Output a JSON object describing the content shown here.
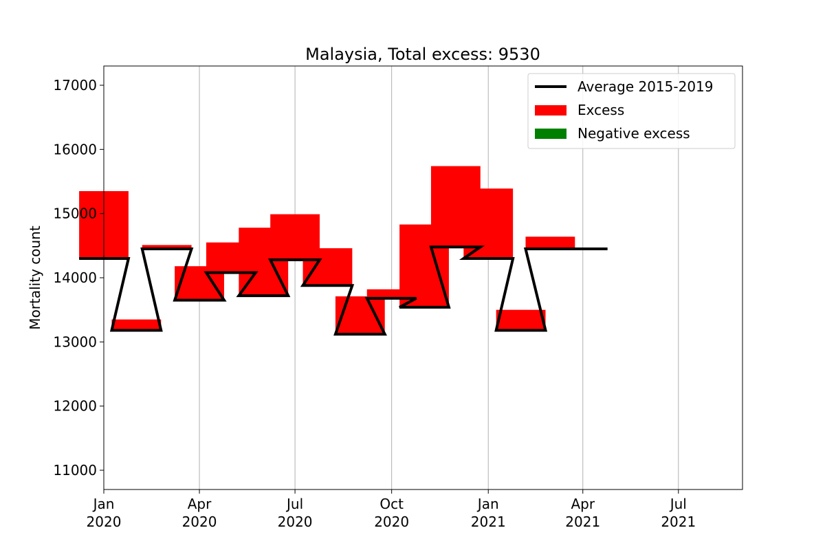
{
  "chart_data": {
    "type": "bar",
    "title": "Malaysia, Total excess: 9530",
    "xlabel": "",
    "ylabel": "Mortality count",
    "ylim": [
      10700,
      17300
    ],
    "y_ticks": [
      11000,
      12000,
      13000,
      14000,
      15000,
      16000,
      17000
    ],
    "xlim": [
      "2020-01-01",
      "2021-08-31"
    ],
    "x_ticks": [
      {
        "date": "2020-01-01",
        "line1": "Jan",
        "line2": "2020"
      },
      {
        "date": "2020-04-01",
        "line1": "Apr",
        "line2": "2020"
      },
      {
        "date": "2020-07-01",
        "line1": "Jul",
        "line2": "2020"
      },
      {
        "date": "2020-10-01",
        "line1": "Oct",
        "line2": "2020"
      },
      {
        "date": "2021-01-01",
        "line1": "Jan",
        "line2": "2021"
      },
      {
        "date": "2021-04-01",
        "line1": "Apr",
        "line2": "2021"
      },
      {
        "date": "2021-07-01",
        "line1": "Jul",
        "line2": "2021"
      }
    ],
    "grid": "vertical",
    "legend_position": "top-right",
    "categories": [
      "2020-01",
      "2020-02",
      "2020-03",
      "2020-04",
      "2020-05",
      "2020-06",
      "2020-07",
      "2020-08",
      "2020-09",
      "2020-10",
      "2020-11",
      "2020-12",
      "2021-01",
      "2021-02",
      "2021-03",
      "2021-04"
    ],
    "series": [
      {
        "name": "Average 2015-2019",
        "values": [
          14300,
          13180,
          14450,
          13650,
          14080,
          13720,
          14280,
          13880,
          13120,
          13680,
          13540,
          14480,
          14300,
          13180,
          14450,
          14450
        ]
      },
      {
        "name": "Excess",
        "values": [
          1050,
          170,
          60,
          530,
          470,
          1060,
          710,
          580,
          590,
          140,
          1290,
          1260,
          1090,
          320,
          190,
          0
        ]
      },
      {
        "name": "Negative excess",
        "values": [
          0,
          0,
          0,
          0,
          0,
          0,
          0,
          0,
          0,
          0,
          0,
          0,
          0,
          0,
          0,
          0
        ]
      }
    ],
    "colors": {
      "average": "#000000",
      "excess": "#ff0000",
      "negative": "#008000",
      "grid": "#b0b0b0"
    }
  }
}
